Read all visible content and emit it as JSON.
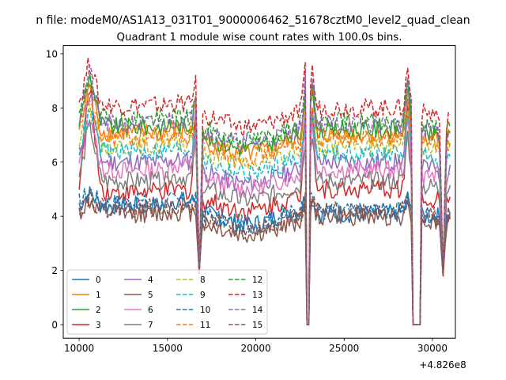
{
  "chart_data": {
    "type": "line",
    "suptitle": "n file: modeM0/AS1A13_031T01_9000006462_51678cztM0_level2_quad_clean",
    "title": "Quadrant 1 module wise count rates with 100.0s bins.",
    "xlabel": "",
    "ylabel": "",
    "x_offset_label": "+4.826e8",
    "xlim": [
      9100,
      31300
    ],
    "ylim": [
      -0.5,
      10.3
    ],
    "xticks": [
      10000,
      15000,
      20000,
      25000,
      30000
    ],
    "xtick_labels": [
      "10000",
      "15000",
      "20000",
      "25000",
      "30000"
    ],
    "yticks": [
      0,
      2,
      4,
      6,
      8,
      10
    ],
    "ytick_labels": [
      "0",
      "2",
      "4",
      "6",
      "8",
      "10"
    ],
    "x_start": 10000,
    "x_step": 100,
    "n_points": 211,
    "gaps": [
      {
        "start": 22900,
        "end": 23000,
        "level": 0
      },
      {
        "start": 28900,
        "end": 29300,
        "level": 0
      }
    ],
    "dips": [
      {
        "center": 16800,
        "low": 1.9
      },
      {
        "center": 30600,
        "low": 1.8
      }
    ],
    "legend_placement": "lower-left",
    "series": [
      {
        "name": "0",
        "color": "#1f77b4",
        "dash": "solid",
        "segments": [
          {
            "from": 10000,
            "to": 15000,
            "level": 4.4
          },
          {
            "from": 15000,
            "to": 17000,
            "level": 4.6
          },
          {
            "from": 17000,
            "to": 23000,
            "level": 4.3
          },
          {
            "from": 23000,
            "to": 29000,
            "level": 4.1
          },
          {
            "from": 29000,
            "to": 31000,
            "level": 4.0
          }
        ],
        "peak": 4.9
      },
      {
        "name": "1",
        "color": "#ff7f0e",
        "dash": "solid",
        "segments": [
          {
            "from": 10000,
            "to": 15000,
            "level": 7.1
          },
          {
            "from": 15000,
            "to": 17000,
            "level": 7.2
          },
          {
            "from": 17000,
            "to": 23000,
            "level": 6.9
          },
          {
            "from": 23000,
            "to": 29000,
            "level": 7.0
          },
          {
            "from": 29000,
            "to": 31000,
            "level": 6.9
          }
        ],
        "peak": 9.0
      },
      {
        "name": "2",
        "color": "#2ca02c",
        "dash": "solid",
        "segments": [
          {
            "from": 10000,
            "to": 15000,
            "level": 7.3
          },
          {
            "from": 15000,
            "to": 17000,
            "level": 7.4
          },
          {
            "from": 17000,
            "to": 23000,
            "level": 7.1
          },
          {
            "from": 23000,
            "to": 29000,
            "level": 7.2
          },
          {
            "from": 29000,
            "to": 31000,
            "level": 7.0
          }
        ],
        "peak": 9.5
      },
      {
        "name": "3",
        "color": "#d62728",
        "dash": "solid",
        "segments": [
          {
            "from": 10000,
            "to": 15000,
            "level": 4.9
          },
          {
            "from": 15000,
            "to": 17000,
            "level": 5.0
          },
          {
            "from": 17000,
            "to": 23000,
            "level": 4.8
          },
          {
            "from": 23000,
            "to": 29000,
            "level": 5.0
          },
          {
            "from": 29000,
            "to": 31000,
            "level": 4.6
          }
        ],
        "peak": 9.2
      },
      {
        "name": "4",
        "color": "#9467bd",
        "dash": "solid",
        "segments": [
          {
            "from": 10000,
            "to": 15000,
            "level": 6.0
          },
          {
            "from": 15000,
            "to": 17000,
            "level": 6.1
          },
          {
            "from": 17000,
            "to": 23000,
            "level": 5.8
          },
          {
            "from": 23000,
            "to": 29000,
            "level": 6.0
          },
          {
            "from": 29000,
            "to": 31000,
            "level": 5.8
          }
        ],
        "peak": 8.9
      },
      {
        "name": "5",
        "color": "#8c564b",
        "dash": "solid",
        "segments": [
          {
            "from": 10000,
            "to": 15000,
            "level": 4.1
          },
          {
            "from": 15000,
            "to": 17000,
            "level": 4.2
          },
          {
            "from": 17000,
            "to": 23000,
            "level": 3.9
          },
          {
            "from": 23000,
            "to": 29000,
            "level": 4.0
          },
          {
            "from": 29000,
            "to": 31000,
            "level": 3.8
          }
        ],
        "peak": 4.6
      },
      {
        "name": "6",
        "color": "#e377c2",
        "dash": "solid",
        "segments": [
          {
            "from": 10000,
            "to": 15000,
            "level": 5.7
          },
          {
            "from": 15000,
            "to": 17000,
            "level": 5.9
          },
          {
            "from": 17000,
            "to": 23000,
            "level": 5.6
          },
          {
            "from": 23000,
            "to": 29000,
            "level": 5.7
          },
          {
            "from": 29000,
            "to": 31000,
            "level": 5.5
          }
        ],
        "peak": 8.0
      },
      {
        "name": "7",
        "color": "#7f7f7f",
        "dash": "solid",
        "segments": [
          {
            "from": 10000,
            "to": 15000,
            "level": 5.3
          },
          {
            "from": 15000,
            "to": 17000,
            "level": 5.5
          },
          {
            "from": 17000,
            "to": 23000,
            "level": 5.2
          },
          {
            "from": 23000,
            "to": 29000,
            "level": 5.3
          },
          {
            "from": 29000,
            "to": 31000,
            "level": 5.1
          }
        ],
        "peak": 7.6
      },
      {
        "name": "8",
        "color": "#bcbd22",
        "dash": "dashed",
        "segments": [
          {
            "from": 10000,
            "to": 15000,
            "level": 6.6
          },
          {
            "from": 15000,
            "to": 17000,
            "level": 6.7
          },
          {
            "from": 17000,
            "to": 23000,
            "level": 6.5
          },
          {
            "from": 23000,
            "to": 29000,
            "level": 6.6
          },
          {
            "from": 29000,
            "to": 31000,
            "level": 6.5
          }
        ],
        "peak": 8.2
      },
      {
        "name": "9",
        "color": "#17becf",
        "dash": "dashed",
        "segments": [
          {
            "from": 10000,
            "to": 15000,
            "level": 6.4
          },
          {
            "from": 15000,
            "to": 17000,
            "level": 6.5
          },
          {
            "from": 17000,
            "to": 23000,
            "level": 6.2
          },
          {
            "from": 23000,
            "to": 29000,
            "level": 6.3
          },
          {
            "from": 29000,
            "to": 31000,
            "level": 6.2
          }
        ],
        "peak": 8.0
      },
      {
        "name": "10",
        "color": "#1f77b4",
        "dash": "dashed",
        "segments": [
          {
            "from": 10000,
            "to": 15000,
            "level": 4.5
          },
          {
            "from": 15000,
            "to": 17000,
            "level": 4.6
          },
          {
            "from": 17000,
            "to": 23000,
            "level": 4.3
          },
          {
            "from": 23000,
            "to": 29000,
            "level": 4.2
          },
          {
            "from": 29000,
            "to": 31000,
            "level": 4.1
          }
        ],
        "peak": 5.0
      },
      {
        "name": "11",
        "color": "#ff7f0e",
        "dash": "dashed",
        "segments": [
          {
            "from": 10000,
            "to": 15000,
            "level": 6.9
          },
          {
            "from": 15000,
            "to": 17000,
            "level": 7.0
          },
          {
            "from": 17000,
            "to": 23000,
            "level": 6.8
          },
          {
            "from": 23000,
            "to": 29000,
            "level": 6.9
          },
          {
            "from": 29000,
            "to": 31000,
            "level": 6.7
          }
        ],
        "peak": 8.6
      },
      {
        "name": "12",
        "color": "#2ca02c",
        "dash": "dashed",
        "segments": [
          {
            "from": 10000,
            "to": 15000,
            "level": 7.6
          },
          {
            "from": 15000,
            "to": 17000,
            "level": 7.7
          },
          {
            "from": 17000,
            "to": 23000,
            "level": 7.4
          },
          {
            "from": 23000,
            "to": 29000,
            "level": 7.5
          },
          {
            "from": 29000,
            "to": 31000,
            "level": 7.3
          }
        ],
        "peak": 9.3
      },
      {
        "name": "13",
        "color": "#d62728",
        "dash": "dashed",
        "segments": [
          {
            "from": 10000,
            "to": 15000,
            "level": 8.1
          },
          {
            "from": 15000,
            "to": 17000,
            "level": 8.2
          },
          {
            "from": 17000,
            "to": 23000,
            "level": 7.9
          },
          {
            "from": 23000,
            "to": 29000,
            "level": 8.0
          },
          {
            "from": 29000,
            "to": 31000,
            "level": 7.8
          }
        ],
        "peak": 9.9
      },
      {
        "name": "14",
        "color": "#9467bd",
        "dash": "dashed",
        "segments": [
          {
            "from": 10000,
            "to": 15000,
            "level": 7.4
          },
          {
            "from": 15000,
            "to": 17000,
            "level": 7.6
          },
          {
            "from": 17000,
            "to": 23000,
            "level": 7.3
          },
          {
            "from": 23000,
            "to": 29000,
            "level": 7.4
          },
          {
            "from": 29000,
            "to": 31000,
            "level": 7.2
          }
        ],
        "peak": 9.6
      },
      {
        "name": "15",
        "color": "#8c564b",
        "dash": "dashed",
        "segments": [
          {
            "from": 10000,
            "to": 15000,
            "level": 4.3
          },
          {
            "from": 15000,
            "to": 17000,
            "level": 4.4
          },
          {
            "from": 17000,
            "to": 23000,
            "level": 4.1
          },
          {
            "from": 23000,
            "to": 29000,
            "level": 4.2
          },
          {
            "from": 29000,
            "to": 31000,
            "level": 4.0
          }
        ],
        "peak": 4.8
      }
    ]
  }
}
